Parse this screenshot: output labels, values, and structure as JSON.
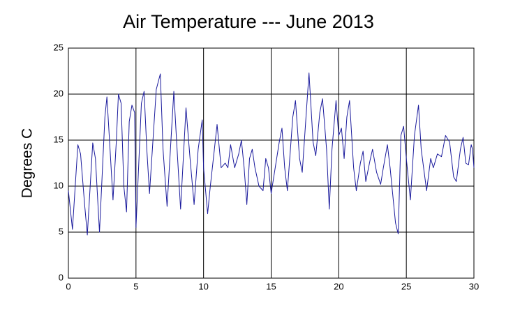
{
  "chart_data": {
    "type": "line",
    "title": "Air Temperature --- June 2013",
    "y_label": "Degrees C",
    "xlim": [
      0,
      30
    ],
    "xticks": [
      0,
      5,
      10,
      15,
      20,
      25,
      30
    ],
    "ylim": [
      0,
      25
    ],
    "yticks": [
      0,
      5,
      10,
      15,
      20,
      25
    ],
    "grid": true,
    "series": [
      {
        "color": "#1a1a9c",
        "x": [
          0,
          0.3,
          0.7,
          0.9,
          1.2,
          1.4,
          1.8,
          2.0,
          2.3,
          2.7,
          2.85,
          3.0,
          3.3,
          3.55,
          3.7,
          3.9,
          4.1,
          4.3,
          4.5,
          4.7,
          4.9,
          5.0,
          5.4,
          5.6,
          5.8,
          6.0,
          6.5,
          6.8,
          7.0,
          7.3,
          7.8,
          8.0,
          8.3,
          8.7,
          9.0,
          9.3,
          9.6,
          9.9,
          10.0,
          10.3,
          10.5,
          10.8,
          11.0,
          11.3,
          11.6,
          11.8,
          12.0,
          12.3,
          12.6,
          12.8,
          13.0,
          13.2,
          13.4,
          13.6,
          13.8,
          14.1,
          14.4,
          14.6,
          14.8,
          15.0,
          15.3,
          15.6,
          15.8,
          16.0,
          16.2,
          16.6,
          16.8,
          17.1,
          17.3,
          17.6,
          17.8,
          18.1,
          18.3,
          18.6,
          18.8,
          19.1,
          19.3,
          19.5,
          19.8,
          20.0,
          20.2,
          20.4,
          20.6,
          20.8,
          21.1,
          21.3,
          21.6,
          21.8,
          22.0,
          22.3,
          22.5,
          22.8,
          23.1,
          23.3,
          23.6,
          23.8,
          24.2,
          24.4,
          24.6,
          24.8,
          25.0,
          25.3,
          25.6,
          25.9,
          26.1,
          26.5,
          26.8,
          27.0,
          27.3,
          27.6,
          27.9,
          28.2,
          28.5,
          28.7,
          29.0,
          29.2,
          29.4,
          29.6,
          29.8,
          29.9,
          30
        ],
        "values": [
          9.5,
          5.3,
          14.5,
          13.5,
          8,
          4.7,
          14.7,
          13,
          5,
          17.5,
          19.7,
          16,
          8.5,
          15,
          20,
          19,
          10,
          7.2,
          17,
          18.8,
          18,
          5.5,
          19,
          20.3,
          14,
          9.2,
          20.5,
          22.2,
          14,
          7.8,
          20.3,
          15,
          7.5,
          18.5,
          13,
          8,
          14,
          17.2,
          12,
          7,
          10,
          14,
          16.7,
          12,
          12.5,
          12,
          14.5,
          12,
          13.5,
          15,
          12,
          8,
          13,
          14,
          12,
          10,
          9.5,
          13,
          12,
          9.2,
          12,
          14.8,
          16.3,
          12,
          9.5,
          17.5,
          19.3,
          13,
          11.5,
          18,
          22.3,
          14.8,
          13.3,
          18,
          19.5,
          14,
          7.5,
          14,
          19.3,
          15.5,
          16.3,
          13,
          17.5,
          19.3,
          12,
          9.5,
          12.5,
          13.8,
          10.5,
          12.7,
          14,
          11.5,
          10.2,
          12,
          14.5,
          12,
          6,
          4.8,
          15.5,
          16.5,
          13,
          8.5,
          15.5,
          18.8,
          14,
          9.5,
          13,
          12,
          13.5,
          13.2,
          15.5,
          14.8,
          11,
          10.5,
          14,
          15.3,
          12.5,
          12.3,
          14.5,
          14,
          12
        ]
      }
    ]
  }
}
